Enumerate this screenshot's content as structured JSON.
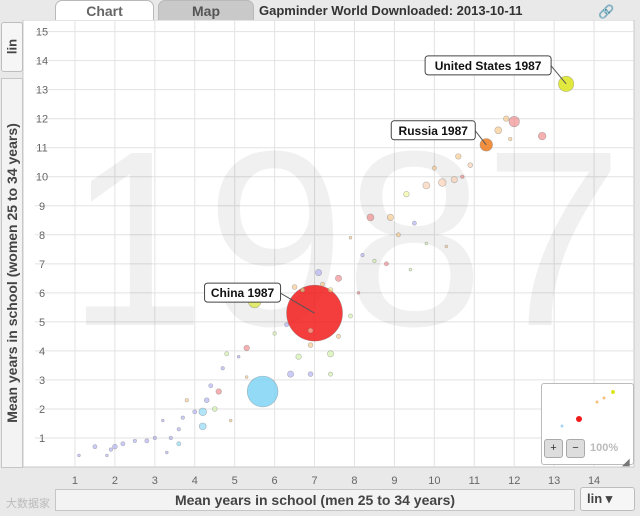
{
  "tabs": [
    {
      "label": "Chart",
      "active": true
    },
    {
      "label": "Map",
      "active": false
    }
  ],
  "download_title": "Gapminder World Downloaded: 2013-10-11",
  "icons": {
    "link": "link-icon",
    "zoom_in": "zoom-in-icon",
    "zoom_out": "zoom-out-icon",
    "resize": "resize-icon"
  },
  "y_scale": "lin",
  "x_scale": "lin",
  "zoom_level": "100%",
  "watermark": "大数据家",
  "chart_data": {
    "type": "scatter",
    "year_watermark": "1987",
    "xlabel": "Mean years in school (men 25 to 34 years)",
    "ylabel": "Mean years in school (women 25 to 34 years)",
    "xlim": [
      0.5,
      15
    ],
    "ylim": [
      0,
      15.4
    ],
    "xticks": [
      1,
      2,
      3,
      4,
      5,
      6,
      7,
      8,
      9,
      10,
      11,
      12,
      13,
      14
    ],
    "yticks": [
      1,
      2,
      3,
      4,
      5,
      6,
      7,
      8,
      9,
      10,
      11,
      12,
      13,
      14,
      15
    ],
    "grid": true,
    "annotations": [
      {
        "label": "United States 1987",
        "x": 13.3,
        "y": 13.2
      },
      {
        "label": "Russia 1987",
        "x": 11.3,
        "y": 11.1
      },
      {
        "label": "China 1987",
        "x": 7.0,
        "y": 5.3
      }
    ],
    "points": [
      {
        "x": 13.3,
        "y": 13.2,
        "size": 1.1,
        "color": "#dde51c"
      },
      {
        "x": 11.3,
        "y": 11.1,
        "size": 0.9,
        "color": "#f07d1d"
      },
      {
        "x": 7.0,
        "y": 5.3,
        "size": 4.0,
        "color": "#f21b1b"
      },
      {
        "x": 5.7,
        "y": 2.6,
        "size": 2.2,
        "color": "#7fd3f3"
      },
      {
        "x": 5.5,
        "y": 5.7,
        "size": 0.9,
        "color": "#dde857"
      },
      {
        "x": 12.0,
        "y": 11.9,
        "size": 0.75,
        "color": "#ef7d7d"
      },
      {
        "x": 11.6,
        "y": 11.6,
        "size": 0.5,
        "color": "#f5c27d"
      },
      {
        "x": 12.7,
        "y": 11.4,
        "size": 0.55,
        "color": "#ef7d7d"
      },
      {
        "x": 11.8,
        "y": 12.0,
        "size": 0.4,
        "color": "#f5c27d"
      },
      {
        "x": 10.6,
        "y": 10.7,
        "size": 0.4,
        "color": "#f5c27d"
      },
      {
        "x": 10.2,
        "y": 9.8,
        "size": 0.55,
        "color": "#f9c9a8"
      },
      {
        "x": 10.5,
        "y": 9.9,
        "size": 0.45,
        "color": "#f9c9a8"
      },
      {
        "x": 9.8,
        "y": 9.7,
        "size": 0.5,
        "color": "#f9c9a8"
      },
      {
        "x": 10.0,
        "y": 10.3,
        "size": 0.3,
        "color": "#f5c27d"
      },
      {
        "x": 10.9,
        "y": 10.4,
        "size": 0.35,
        "color": "#f9c9a8"
      },
      {
        "x": 9.3,
        "y": 9.4,
        "size": 0.4,
        "color": "#eef58e"
      },
      {
        "x": 8.9,
        "y": 8.6,
        "size": 0.45,
        "color": "#f5c27d"
      },
      {
        "x": 8.4,
        "y": 8.6,
        "size": 0.5,
        "color": "#ef7d7d"
      },
      {
        "x": 7.4,
        "y": 6.1,
        "size": 0.35,
        "color": "#f2d880"
      },
      {
        "x": 7.1,
        "y": 6.7,
        "size": 0.45,
        "color": "#a9a9f2"
      },
      {
        "x": 7.6,
        "y": 6.5,
        "size": 0.45,
        "color": "#ef7d7d"
      },
      {
        "x": 7.2,
        "y": 6.3,
        "size": 0.3,
        "color": "#f5c27d"
      },
      {
        "x": 6.7,
        "y": 6.1,
        "size": 0.3,
        "color": "#c9ee9c"
      },
      {
        "x": 6.5,
        "y": 6.2,
        "size": 0.35,
        "color": "#f5c27d"
      },
      {
        "x": 6.3,
        "y": 4.9,
        "size": 0.3,
        "color": "#a9a9f2"
      },
      {
        "x": 6.6,
        "y": 3.8,
        "size": 0.4,
        "color": "#c9ee9c"
      },
      {
        "x": 7.4,
        "y": 3.9,
        "size": 0.45,
        "color": "#c9ee9c"
      },
      {
        "x": 6.9,
        "y": 4.7,
        "size": 0.35,
        "color": "#f9c9a8"
      },
      {
        "x": 6.9,
        "y": 4.2,
        "size": 0.35,
        "color": "#f5c27d"
      },
      {
        "x": 7.6,
        "y": 4.5,
        "size": 0.3,
        "color": "#f5c27d"
      },
      {
        "x": 7.9,
        "y": 5.2,
        "size": 0.3,
        "color": "#c9ee9c"
      },
      {
        "x": 7.4,
        "y": 3.2,
        "size": 0.3,
        "color": "#c9ee9c"
      },
      {
        "x": 6.4,
        "y": 3.2,
        "size": 0.45,
        "color": "#a9a9f2"
      },
      {
        "x": 6.9,
        "y": 3.2,
        "size": 0.35,
        "color": "#a9a9f2"
      },
      {
        "x": 5.3,
        "y": 4.1,
        "size": 0.4,
        "color": "#ef7d7d"
      },
      {
        "x": 5.1,
        "y": 3.8,
        "size": 0.2,
        "color": "#a9a9f2"
      },
      {
        "x": 4.8,
        "y": 3.9,
        "size": 0.3,
        "color": "#c9ee9c"
      },
      {
        "x": 4.7,
        "y": 3.4,
        "size": 0.25,
        "color": "#a9a9f2"
      },
      {
        "x": 4.6,
        "y": 2.6,
        "size": 0.4,
        "color": "#ef7d7d"
      },
      {
        "x": 4.5,
        "y": 2.0,
        "size": 0.35,
        "color": "#c9ee9c"
      },
      {
        "x": 4.4,
        "y": 2.8,
        "size": 0.3,
        "color": "#a9a9f2"
      },
      {
        "x": 4.2,
        "y": 1.9,
        "size": 0.55,
        "color": "#7fd3f3"
      },
      {
        "x": 4.2,
        "y": 1.4,
        "size": 0.5,
        "color": "#7fd3f3"
      },
      {
        "x": 4.3,
        "y": 2.3,
        "size": 0.35,
        "color": "#a9a9f2"
      },
      {
        "x": 4.0,
        "y": 1.9,
        "size": 0.3,
        "color": "#a9a9f2"
      },
      {
        "x": 3.8,
        "y": 2.3,
        "size": 0.25,
        "color": "#f5c27d"
      },
      {
        "x": 3.7,
        "y": 1.7,
        "size": 0.25,
        "color": "#a9a9f2"
      },
      {
        "x": 3.6,
        "y": 1.3,
        "size": 0.25,
        "color": "#a9a9f2"
      },
      {
        "x": 3.6,
        "y": 0.8,
        "size": 0.3,
        "color": "#7fd3f3"
      },
      {
        "x": 3.4,
        "y": 1.0,
        "size": 0.25,
        "color": "#a9a9f2"
      },
      {
        "x": 3.2,
        "y": 1.6,
        "size": 0.2,
        "color": "#a9a9f2"
      },
      {
        "x": 3.0,
        "y": 1.0,
        "size": 0.25,
        "color": "#a9a9f2"
      },
      {
        "x": 2.8,
        "y": 0.9,
        "size": 0.3,
        "color": "#a9a9f2"
      },
      {
        "x": 2.5,
        "y": 0.9,
        "size": 0.25,
        "color": "#a9a9f2"
      },
      {
        "x": 2.2,
        "y": 0.8,
        "size": 0.3,
        "color": "#a9a9f2"
      },
      {
        "x": 2.0,
        "y": 0.7,
        "size": 0.35,
        "color": "#a9a9f2"
      },
      {
        "x": 1.9,
        "y": 0.6,
        "size": 0.25,
        "color": "#a9a9f2"
      },
      {
        "x": 1.5,
        "y": 0.7,
        "size": 0.3,
        "color": "#a9a9f2"
      },
      {
        "x": 1.1,
        "y": 0.4,
        "size": 0.2,
        "color": "#a9a9f2"
      },
      {
        "x": 1.8,
        "y": 0.4,
        "size": 0.2,
        "color": "#a9a9f2"
      },
      {
        "x": 3.3,
        "y": 0.5,
        "size": 0.2,
        "color": "#a9a9f2"
      },
      {
        "x": 4.9,
        "y": 1.6,
        "size": 0.2,
        "color": "#f5c27d"
      },
      {
        "x": 5.3,
        "y": 3.1,
        "size": 0.2,
        "color": "#f5c27d"
      },
      {
        "x": 6.0,
        "y": 4.6,
        "size": 0.25,
        "color": "#c9ee9c"
      },
      {
        "x": 8.5,
        "y": 7.1,
        "size": 0.25,
        "color": "#c9ee9c"
      },
      {
        "x": 8.2,
        "y": 7.3,
        "size": 0.25,
        "color": "#a9a9f2"
      },
      {
        "x": 9.1,
        "y": 8.0,
        "size": 0.3,
        "color": "#f5c27d"
      },
      {
        "x": 9.5,
        "y": 8.4,
        "size": 0.3,
        "color": "#a9a9f2"
      },
      {
        "x": 9.8,
        "y": 7.7,
        "size": 0.2,
        "color": "#c9ee9c"
      },
      {
        "x": 10.3,
        "y": 7.6,
        "size": 0.2,
        "color": "#f5c27d"
      },
      {
        "x": 9.4,
        "y": 6.8,
        "size": 0.2,
        "color": "#c9ee9c"
      },
      {
        "x": 8.8,
        "y": 7.0,
        "size": 0.3,
        "color": "#ef7d7d"
      },
      {
        "x": 8.1,
        "y": 6.0,
        "size": 0.2,
        "color": "#ef7d7d"
      },
      {
        "x": 7.9,
        "y": 7.9,
        "size": 0.2,
        "color": "#f5c27d"
      },
      {
        "x": 10.7,
        "y": 10.0,
        "size": 0.25,
        "color": "#ef7d7d"
      },
      {
        "x": 11.9,
        "y": 11.3,
        "size": 0.25,
        "color": "#f5c27d"
      }
    ]
  }
}
